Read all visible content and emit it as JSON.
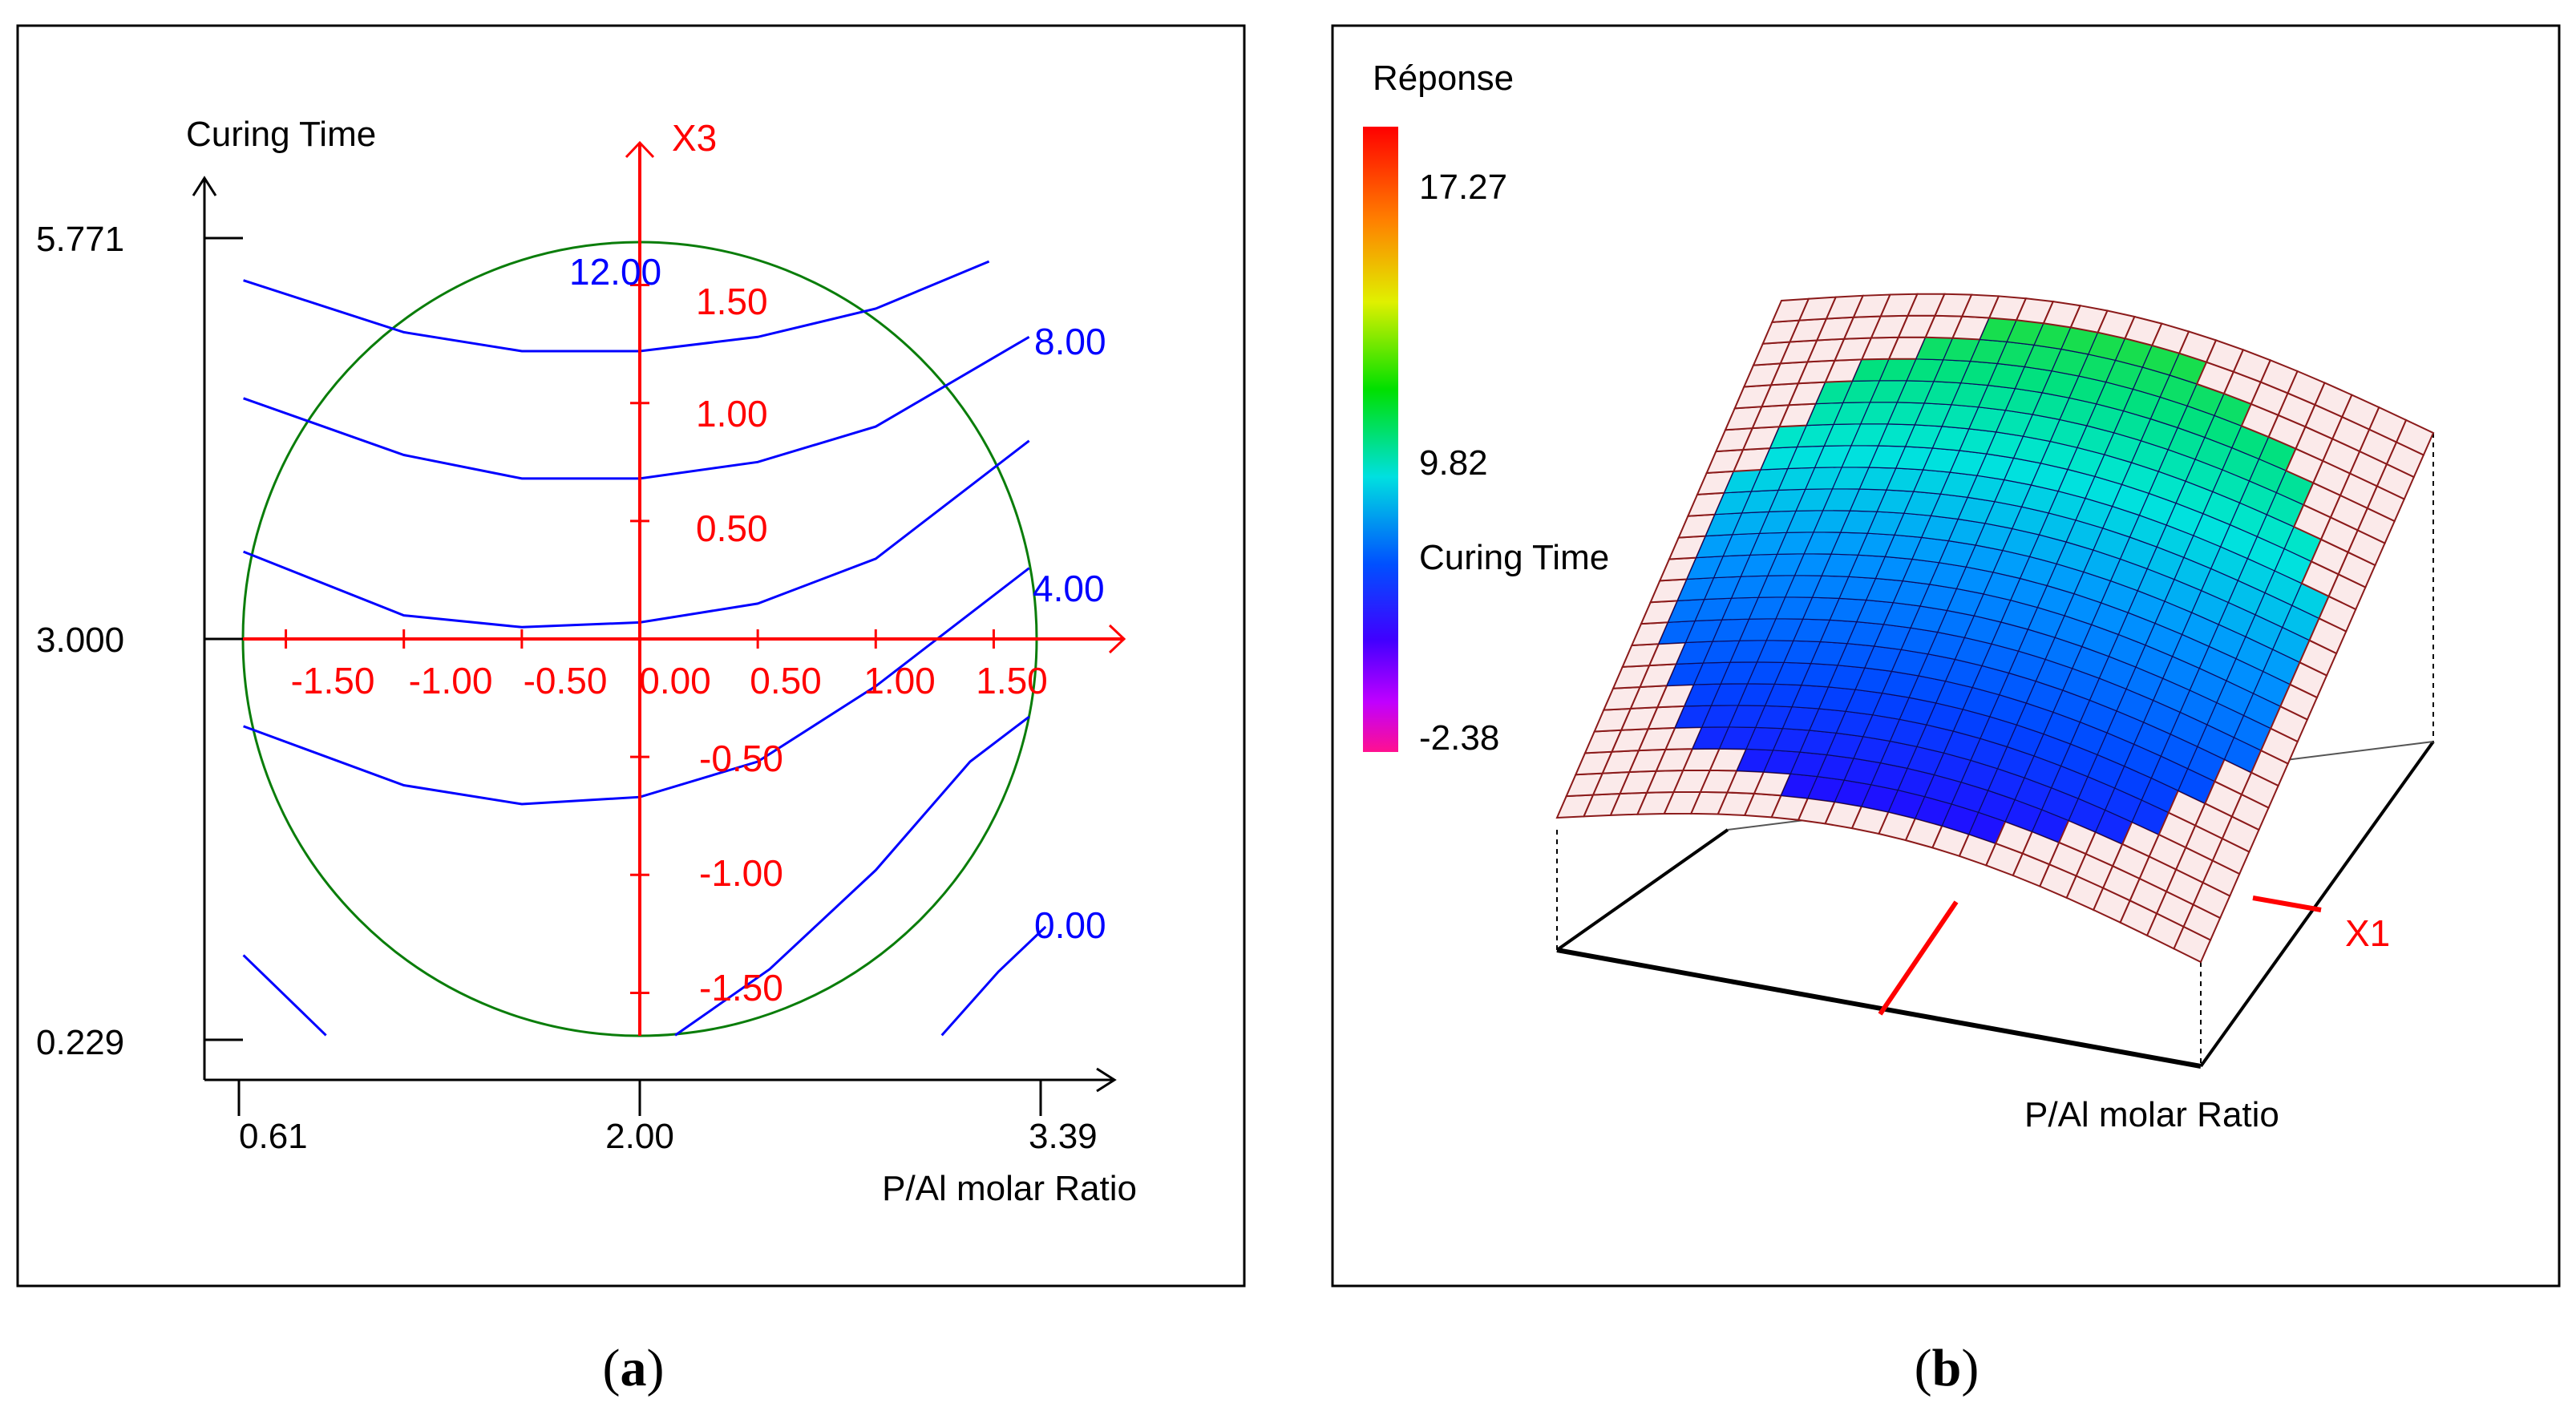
{
  "panels": [
    {
      "id": "a",
      "caption_open": "(",
      "caption_letter": "a",
      "caption_close": ")",
      "chart_data": {
        "type": "contour",
        "title": "",
        "xlabel": "P/Al molar Ratio",
        "ylabel": "Curing Time",
        "x_ticks": [
          "0.61",
          "2.00",
          "3.39"
        ],
        "y_ticks": [
          "5.771",
          "3.000",
          "0.229"
        ],
        "xlim": [
          0.61,
          3.39
        ],
        "ylim": [
          0.229,
          5.771
        ],
        "coded_axis_label": "X3",
        "coded_x_ticks": [
          "-1.50",
          "-1.00",
          "-0.50",
          "0.00",
          "0.50",
          "1.00",
          "1.50"
        ],
        "coded_y_ticks": [
          "1.50",
          "1.00",
          "0.50",
          "-0.50",
          "-1.00",
          "-1.50"
        ],
        "coded_range": [
          -1.682,
          1.682
        ],
        "domain_circle_radius_coded": 1.682,
        "contour_labels": [
          "12.00",
          "8.00",
          "4.00",
          "0.00"
        ],
        "contours": [
          {
            "points": [
              [
                -1.68,
                1.52
              ],
              [
                -1.0,
                1.3
              ],
              [
                -0.5,
                1.22
              ],
              [
                0.0,
                1.22
              ],
              [
                0.5,
                1.28
              ],
              [
                1.0,
                1.4
              ],
              [
                1.48,
                1.6
              ]
            ]
          },
          {
            "points": [
              [
                -1.68,
                1.02
              ],
              [
                -1.0,
                0.78
              ],
              [
                -0.5,
                0.68
              ],
              [
                0.0,
                0.68
              ],
              [
                0.5,
                0.75
              ],
              [
                1.0,
                0.9
              ],
              [
                1.65,
                1.28
              ]
            ]
          },
          {
            "points": [
              [
                -1.68,
                0.37
              ],
              [
                -1.0,
                0.1
              ],
              [
                -0.5,
                0.05
              ],
              [
                0.0,
                0.07
              ],
              [
                0.5,
                0.15
              ],
              [
                1.0,
                0.34
              ],
              [
                1.65,
                0.84
              ]
            ]
          },
          {
            "points": [
              [
                -1.68,
                -0.37
              ],
              [
                -1.0,
                -0.62
              ],
              [
                -0.5,
                -0.7
              ],
              [
                0.0,
                -0.67
              ],
              [
                0.5,
                -0.52
              ],
              [
                1.0,
                -0.2
              ],
              [
                1.65,
                0.3
              ]
            ]
          },
          {
            "points": [
              [
                0.15,
                -1.68
              ],
              [
                0.55,
                -1.4
              ],
              [
                1.0,
                -0.98
              ],
              [
                1.4,
                -0.52
              ],
              [
                1.65,
                -0.33
              ]
            ]
          },
          {
            "points": [
              [
                -1.68,
                -1.34
              ],
              [
                -1.33,
                -1.68
              ]
            ]
          },
          {
            "points": [
              [
                1.28,
                -1.68
              ],
              [
                1.52,
                -1.41
              ],
              [
                1.72,
                -1.22
              ]
            ]
          }
        ]
      }
    },
    {
      "id": "b",
      "caption_open": "(",
      "caption_letter": "b",
      "caption_close": ")",
      "chart_data": {
        "type": "surface3d",
        "title": "",
        "xlabel": "P/Al molar Ratio",
        "ylabel": "Curing Time",
        "zlabel": "Réponse",
        "colorbar_title": "Réponse",
        "colorbar_ticks": [
          "17.27",
          "9.82",
          "-2.38"
        ],
        "colorbar_mid_label": "Curing Time",
        "colorbar_range": [
          -2.38,
          17.27
        ],
        "axis_marker_label": "X1",
        "grid_size": [
          24,
          24
        ]
      }
    }
  ]
}
